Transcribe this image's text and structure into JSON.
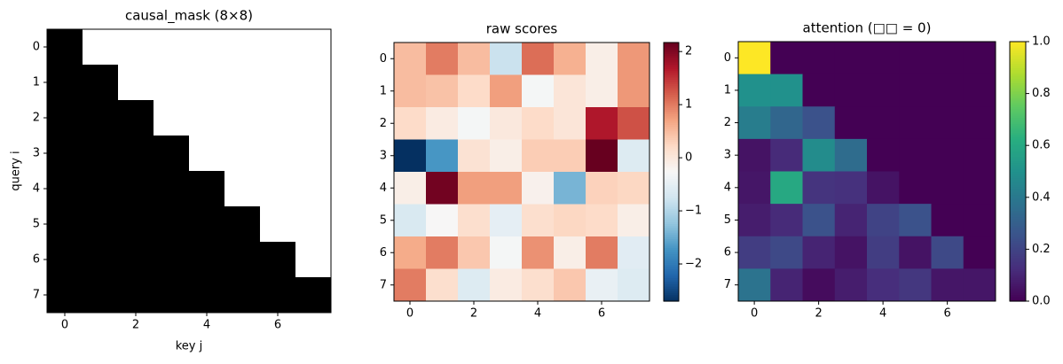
{
  "chart_data": [
    {
      "type": "heatmap",
      "title": "causal_mask (8×8)",
      "xlabel": "key j",
      "ylabel": "query i",
      "colormap": "gray",
      "zlim": [
        0,
        1
      ],
      "xlim": [
        -0.5,
        7.5
      ],
      "ylim": [
        7.5,
        -0.5
      ],
      "xticks": [
        0,
        2,
        4,
        6
      ],
      "yticks": [
        0,
        1,
        2,
        3,
        4,
        5,
        6,
        7
      ],
      "values": [
        [
          0,
          1,
          1,
          1,
          1,
          1,
          1,
          1
        ],
        [
          0,
          0,
          1,
          1,
          1,
          1,
          1,
          1
        ],
        [
          0,
          0,
          0,
          1,
          1,
          1,
          1,
          1
        ],
        [
          0,
          0,
          0,
          0,
          1,
          1,
          1,
          1
        ],
        [
          0,
          0,
          0,
          0,
          0,
          1,
          1,
          1
        ],
        [
          0,
          0,
          0,
          0,
          0,
          0,
          1,
          1
        ],
        [
          0,
          0,
          0,
          0,
          0,
          0,
          0,
          1
        ],
        [
          0,
          0,
          0,
          0,
          0,
          0,
          0,
          0
        ]
      ]
    },
    {
      "type": "heatmap",
      "title": "raw scores",
      "colormap": "RdBu_r",
      "zlim": [
        -2.7,
        2.17
      ],
      "zticks": [
        {
          "value": -2,
          "label": "−2"
        },
        {
          "value": -1,
          "label": "−1"
        },
        0,
        1,
        2
      ],
      "xlim": [
        -0.5,
        7.5
      ],
      "ylim": [
        7.5,
        -0.5
      ],
      "xticks": [
        0,
        2,
        4,
        6
      ],
      "yticks": [
        0,
        1,
        2,
        3,
        4,
        5,
        6,
        7
      ],
      "values": [
        [
          0.5,
          1.0,
          0.5,
          -0.8,
          1.1,
          0.6,
          -0.1,
          0.8
        ],
        [
          0.5,
          0.45,
          0.2,
          0.75,
          -0.3,
          0.05,
          -0.1,
          0.8
        ],
        [
          0.2,
          -0.05,
          -0.3,
          0.0,
          0.2,
          0.05,
          1.7,
          1.3
        ],
        [
          -2.7,
          -1.7,
          0.1,
          -0.1,
          0.35,
          0.35,
          2.17,
          -0.6
        ],
        [
          -0.1,
          2.1,
          0.75,
          0.75,
          -0.15,
          -1.4,
          0.3,
          0.25
        ],
        [
          -0.65,
          -0.25,
          0.15,
          -0.5,
          0.15,
          0.25,
          0.2,
          -0.1
        ],
        [
          0.65,
          1.0,
          0.4,
          -0.3,
          0.85,
          -0.1,
          1.0,
          -0.55
        ],
        [
          1.0,
          0.15,
          -0.6,
          -0.05,
          0.15,
          0.4,
          -0.45,
          -0.6
        ]
      ]
    },
    {
      "type": "heatmap",
      "title": "attention (□□ = 0)",
      "colormap": "viridis",
      "zlim": [
        0,
        1
      ],
      "zticks": [
        {
          "value": 0,
          "label": "0.0"
        },
        0.2,
        0.4,
        0.6,
        0.8,
        {
          "value": 1,
          "label": "1.0"
        }
      ],
      "xlim": [
        -0.5,
        7.5
      ],
      "ylim": [
        7.5,
        -0.5
      ],
      "xticks": [
        0,
        2,
        4,
        6
      ],
      "yticks": [
        0,
        1,
        2,
        3,
        4,
        5,
        6,
        7
      ],
      "values": [
        [
          1.0,
          0,
          0,
          0,
          0,
          0,
          0,
          0
        ],
        [
          0.5,
          0.5,
          0,
          0,
          0,
          0,
          0,
          0
        ],
        [
          0.42,
          0.33,
          0.25,
          0,
          0,
          0,
          0,
          0
        ],
        [
          0.05,
          0.12,
          0.48,
          0.35,
          0,
          0,
          0,
          0
        ],
        [
          0.06,
          0.6,
          0.15,
          0.14,
          0.05,
          0,
          0,
          0
        ],
        [
          0.08,
          0.12,
          0.25,
          0.1,
          0.2,
          0.25,
          0,
          0
        ],
        [
          0.18,
          0.22,
          0.1,
          0.05,
          0.18,
          0.05,
          0.22,
          0.0
        ],
        [
          0.38,
          0.1,
          0.03,
          0.08,
          0.13,
          0.16,
          0.06,
          0.06
        ]
      ]
    }
  ]
}
